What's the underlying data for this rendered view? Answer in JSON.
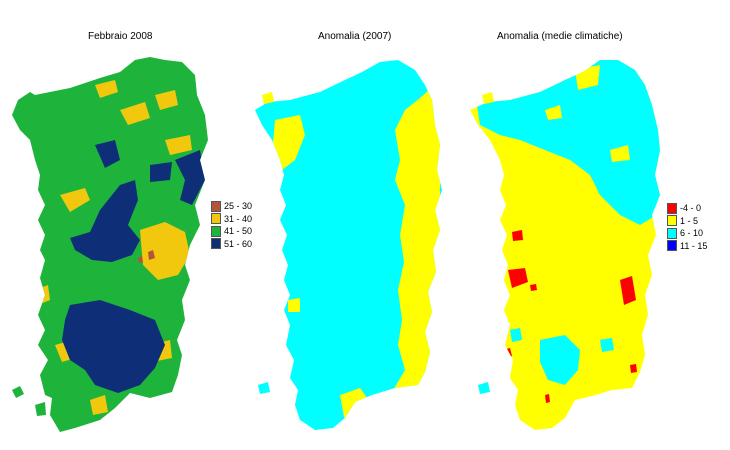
{
  "panels": [
    {
      "title": "Febbraio 2008"
    },
    {
      "title": "Anomalia (2007)"
    },
    {
      "title": "Anomalia (medie climatiche)"
    }
  ],
  "legend_left": {
    "items": [
      {
        "label": "25 - 30",
        "color": "#b5543a"
      },
      {
        "label": "31 - 40",
        "color": "#f2c80f"
      },
      {
        "label": "41 - 50",
        "color": "#1eb43c"
      },
      {
        "label": "51 - 60",
        "color": "#0f2e78"
      }
    ]
  },
  "legend_right": {
    "items": [
      {
        "label": "-4 - 0",
        "color": "#ff0000"
      },
      {
        "label": "1 - 5",
        "color": "#ffff00"
      },
      {
        "label": "6 - 10",
        "color": "#00ffff"
      },
      {
        "label": "11 - 15",
        "color": "#0000ff"
      }
    ]
  },
  "colors": {
    "green": "#1eb43c",
    "yellow_left": "#f2c80f",
    "navy": "#0f2e78",
    "brown": "#b5543a",
    "yellow": "#ffff00",
    "cyan": "#00ffff",
    "red": "#ff0000",
    "blue": "#0000ff"
  }
}
